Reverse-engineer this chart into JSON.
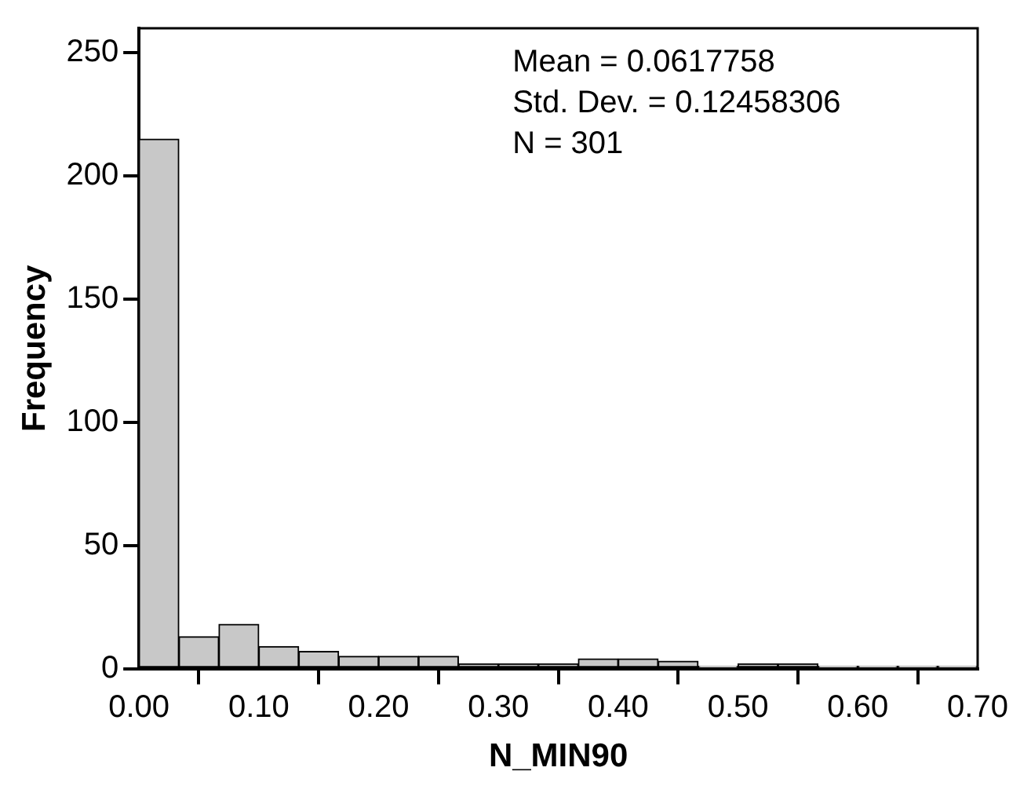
{
  "chart_data": {
    "type": "histogram",
    "xlabel": "N_MIN90",
    "ylabel": "Frequency",
    "bins": [
      0,
      0.0333,
      0.0667,
      0.1,
      0.1333,
      0.1667,
      0.2,
      0.2333,
      0.2667,
      0.3,
      0.3333,
      0.3667,
      0.4,
      0.4333,
      0.4667,
      0.5,
      0.5333,
      0.5667,
      0.6,
      0.6333,
      0.6667,
      0.7
    ],
    "values": [
      215,
      13,
      18,
      9,
      7,
      5,
      5,
      5,
      2,
      2,
      2,
      4,
      4,
      3,
      1,
      2,
      2,
      1,
      1,
      1,
      1
    ],
    "color": "#c8c8c8",
    "xlim": [
      0,
      0.7
    ],
    "xticks": [
      {
        "value": 0,
        "label": "0.00"
      },
      {
        "value": 0.1,
        "label": "0.10"
      },
      {
        "value": 0.2,
        "label": "0.20"
      },
      {
        "value": 0.3,
        "label": "0.30"
      },
      {
        "value": 0.4,
        "label": "0.40"
      },
      {
        "value": 0.5,
        "label": "0.50"
      },
      {
        "value": 0.6,
        "label": "0.60"
      },
      {
        "value": 0.7,
        "label": "0.70"
      }
    ],
    "ylim": [
      0,
      260
    ],
    "yticks": [
      0,
      50,
      100,
      150,
      200,
      250
    ],
    "grid": false,
    "legend": false,
    "annotations": [
      "Mean = 0.0617758",
      "Std. Dev. = 0.12458306",
      "N = 301"
    ]
  }
}
